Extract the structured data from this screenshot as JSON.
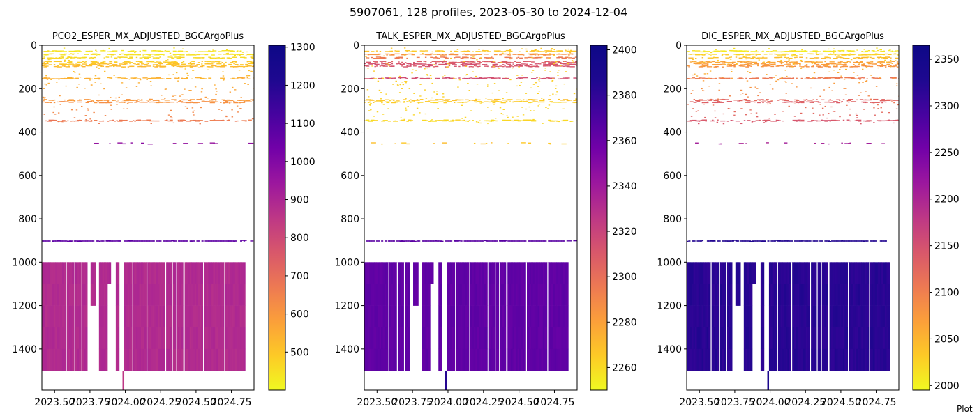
{
  "figure": {
    "title": "5907061, 128 profiles, 2023-05-30 to 2024-12-04",
    "footer_note": "Plot"
  },
  "chart_data": [
    {
      "type": "heatmap",
      "title": "PCO2_ESPER_MX_ADJUSTED_BGCArgoPlus",
      "xlabel": "",
      "ylabel": "",
      "xlim": [
        2023.41,
        2024.91
      ],
      "ylim": [
        1590,
        0
      ],
      "x_ticks": [
        "2023.50",
        "2023.75",
        "2024.00",
        "2024.25",
        "2024.50",
        "2024.75"
      ],
      "y_ticks": [
        "0",
        "200",
        "400",
        "600",
        "800",
        "1000",
        "1200",
        "1400"
      ],
      "colormap": "plasma_r",
      "colorbar": {
        "min": 400,
        "max": 1305,
        "ticks": [
          "500",
          "600",
          "700",
          "800",
          "900",
          "1000",
          "1100",
          "1200",
          "1300"
        ]
      },
      "profile_x_range": [
        2023.41,
        2024.93
      ],
      "observed_bands": [
        {
          "depth": 25,
          "value": 440
        },
        {
          "depth": 40,
          "value": 450
        },
        {
          "depth": 55,
          "value": 470
        },
        {
          "depth": 75,
          "value": 500
        },
        {
          "depth": 85,
          "value": 520
        },
        {
          "depth": 95,
          "value": 540
        },
        {
          "depth": 150,
          "value": 560
        },
        {
          "depth": 250,
          "value": 620
        },
        {
          "depth": 260,
          "value": 640
        },
        {
          "depth": 345,
          "value": 700
        },
        {
          "depth": 450,
          "value": 1030
        },
        {
          "depth": 900,
          "value": 1150
        }
      ],
      "deep_block": {
        "from": 1000,
        "to": 1500,
        "value": 940
      },
      "deep_extension": {
        "x": 2023.98,
        "to": 1590,
        "value": 900
      }
    },
    {
      "type": "heatmap",
      "title": "TALK_ESPER_MX_ADJUSTED_BGCArgoPlus",
      "xlabel": "",
      "ylabel": "",
      "xlim": [
        2023.41,
        2024.91
      ],
      "ylim": [
        1590,
        0
      ],
      "x_ticks": [
        "2023.50",
        "2023.75",
        "2024.00",
        "2024.25",
        "2024.50",
        "2024.75"
      ],
      "y_ticks": [
        "0",
        "200",
        "400",
        "600",
        "800",
        "1000",
        "1200",
        "1400"
      ],
      "colormap": "plasma_r",
      "colorbar": {
        "min": 2250,
        "max": 2402,
        "ticks": [
          "2260",
          "2280",
          "2300",
          "2320",
          "2340",
          "2360",
          "2380",
          "2400"
        ]
      },
      "profile_x_range": [
        2023.41,
        2024.93
      ],
      "observed_bands": [
        {
          "depth": 25,
          "value": 2268
        },
        {
          "depth": 40,
          "value": 2290
        },
        {
          "depth": 55,
          "value": 2300
        },
        {
          "depth": 75,
          "value": 2315
        },
        {
          "depth": 85,
          "value": 2320
        },
        {
          "depth": 95,
          "value": 2318
        },
        {
          "depth": 150,
          "value": 2322
        },
        {
          "depth": 250,
          "value": 2270
        },
        {
          "depth": 260,
          "value": 2265
        },
        {
          "depth": 345,
          "value": 2262
        },
        {
          "depth": 450,
          "value": 2270
        },
        {
          "depth": 900,
          "value": 2378
        }
      ],
      "deep_block": {
        "from": 1000,
        "to": 1500,
        "value": 2375
      },
      "deep_extension": {
        "x": 2023.98,
        "to": 1590,
        "value": 2395
      }
    },
    {
      "type": "heatmap",
      "title": "DIC_ESPER_MX_ADJUSTED_BGCArgoPlus",
      "xlabel": "",
      "ylabel": "",
      "xlim": [
        2023.41,
        2024.91
      ],
      "ylim": [
        1590,
        0
      ],
      "x_ticks": [
        "2023.50",
        "2023.75",
        "2024.00",
        "2024.25",
        "2024.50",
        "2024.75"
      ],
      "y_ticks": [
        "0",
        "200",
        "400",
        "600",
        "800",
        "1000",
        "1200",
        "1400"
      ],
      "colormap": "plasma_r",
      "colorbar": {
        "min": 1995,
        "max": 2365,
        "ticks": [
          "2000",
          "2050",
          "2100",
          "2150",
          "2200",
          "2250",
          "2300",
          "2350"
        ]
      },
      "profile_x_range": [
        2023.41,
        2024.93
      ],
      "observed_bands": [
        {
          "depth": 25,
          "value": 2010
        },
        {
          "depth": 40,
          "value": 2030
        },
        {
          "depth": 55,
          "value": 2050
        },
        {
          "depth": 75,
          "value": 2070
        },
        {
          "depth": 85,
          "value": 2080
        },
        {
          "depth": 95,
          "value": 2090
        },
        {
          "depth": 150,
          "value": 2120
        },
        {
          "depth": 250,
          "value": 2140
        },
        {
          "depth": 260,
          "value": 2150
        },
        {
          "depth": 345,
          "value": 2160
        },
        {
          "depth": 450,
          "value": 2230
        },
        {
          "depth": 900,
          "value": 2350
        }
      ],
      "deep_block": {
        "from": 1000,
        "to": 1500,
        "value": 2345
      },
      "deep_extension": {
        "x": 2023.98,
        "to": 1590,
        "value": 2355
      }
    }
  ]
}
